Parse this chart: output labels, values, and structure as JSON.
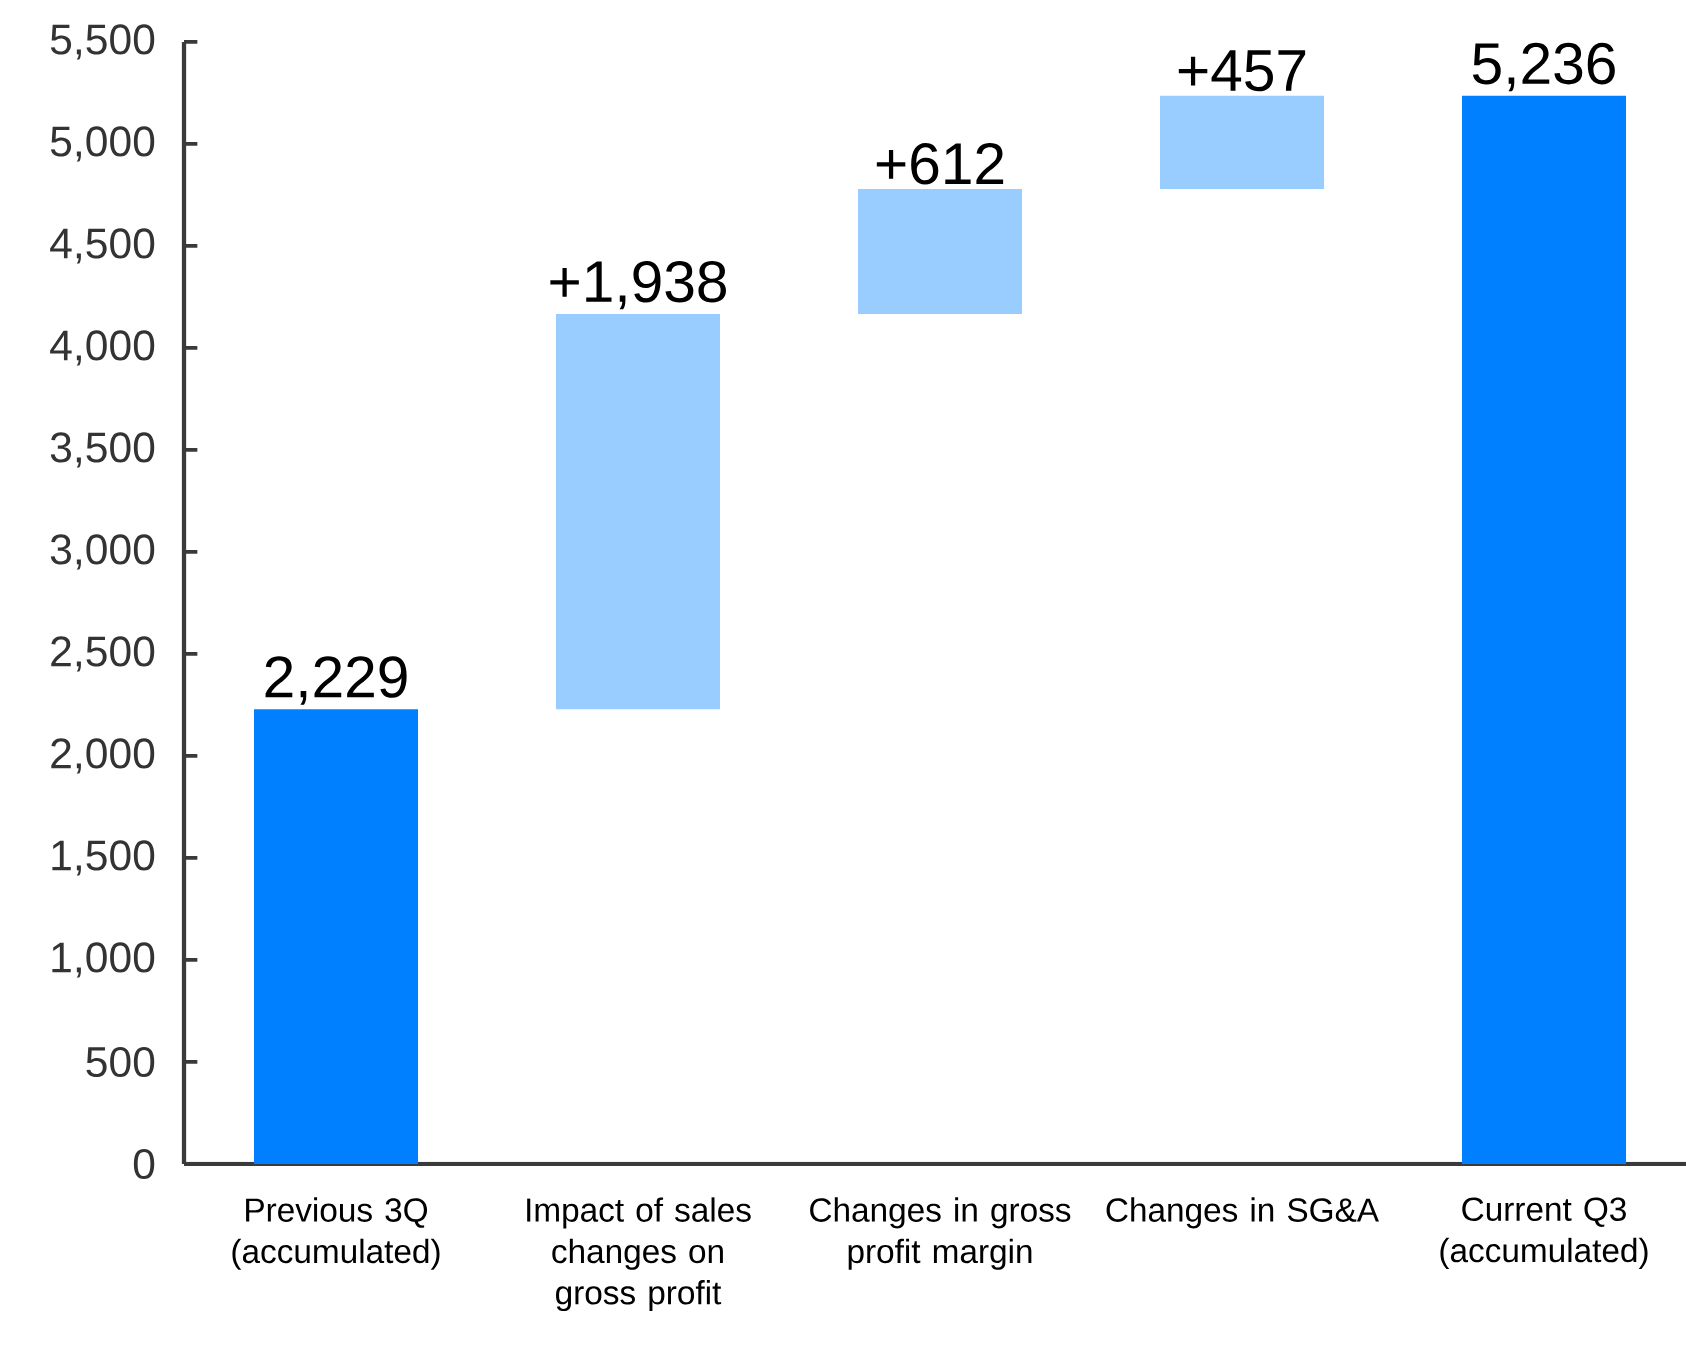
{
  "chart_data": {
    "type": "bar",
    "categories": [
      "Previous 3Q (accumulated)",
      "Impact of sales changes on gross profit",
      "Changes in gross profit margin",
      "Changes in SG&A",
      "Current Q3 (accumulated)"
    ],
    "values": [
      2229,
      1938,
      612,
      457,
      5236
    ],
    "base": [
      0,
      2229,
      4167,
      4779,
      0
    ],
    "colors": [
      "#007fff",
      "#99ccff",
      "#99ccff",
      "#99ccff",
      "#007fff"
    ],
    "value_labels": [
      "2,229",
      "+1,938",
      "+612",
      "+457",
      "5,236"
    ],
    "ylim": [
      0,
      5500
    ],
    "yticks": [
      0,
      500,
      {
        "value": 1000,
        "label": "1,000"
      },
      {
        "value": 1500,
        "label": "1,500"
      },
      {
        "value": 2000,
        "label": "2,000"
      },
      {
        "value": 2500,
        "label": "2,500"
      },
      {
        "value": 3000,
        "label": "3,000"
      },
      {
        "value": 3500,
        "label": "3,500"
      },
      {
        "value": 4000,
        "label": "4,000"
      },
      {
        "value": 4500,
        "label": "4,500"
      },
      {
        "value": 5000,
        "label": "5,000"
      },
      {
        "value": 5500,
        "label": "5,500"
      }
    ]
  }
}
